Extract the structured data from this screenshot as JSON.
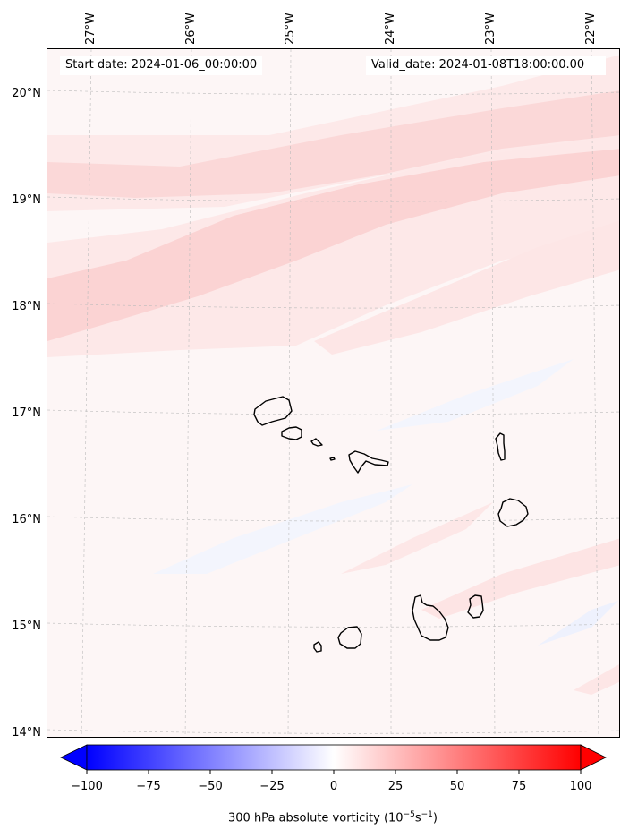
{
  "map": {
    "lon_labels": [
      "27°W",
      "26°W",
      "25°W",
      "24°W",
      "23°W",
      "22°W"
    ],
    "lat_labels": [
      "20°N",
      "19°N",
      "18°N",
      "17°N",
      "16°N",
      "15°N",
      "14°N"
    ],
    "start_date": "Start date: 2024-01-06_00:00:00",
    "valid_date": "Valid_date: 2024-01-08T18:00:00.00",
    "field_colors": {
      "background": "#fdf6f6",
      "weak_positive": "#fde8e8",
      "positive": "#fbd5d5",
      "weak_negative": "#f3f5fd"
    },
    "islands": [
      "Santo Antão",
      "São Vicente",
      "Santa Luzia",
      "Branco",
      "Raso",
      "São Nicolau",
      "Sal",
      "Boa Vista",
      "Maio",
      "Santiago",
      "Fogo",
      "Brava"
    ]
  },
  "colorbar": {
    "label_text": "300 hPa absolute vorticity (10",
    "label_exp": "−5",
    "label_unit": "s",
    "label_exp2": "−1",
    "label_close": ")",
    "ticks": [
      "−100",
      "−75",
      "−50",
      "−25",
      "0",
      "25",
      "50",
      "75",
      "100"
    ],
    "min_color": "#0000ff",
    "mid_color": "#ffffff",
    "max_color": "#ff0000"
  }
}
